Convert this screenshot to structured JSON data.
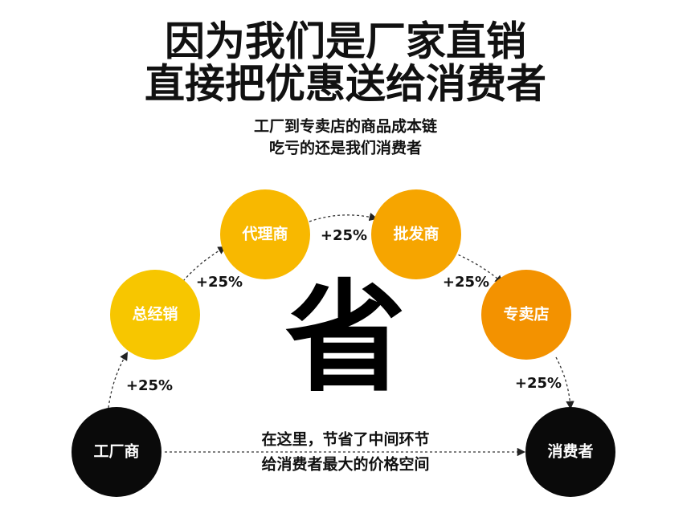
{
  "header": {
    "title_lines": [
      "因为我们是厂家直销",
      "直接把优惠送给消费者"
    ],
    "subtitle_lines": [
      "工厂到专卖店的商品成本链",
      "吃亏的还是我们消费者"
    ]
  },
  "nodes": [
    {
      "label": "工厂商"
    },
    {
      "label": "总经销"
    },
    {
      "label": "代理商"
    },
    {
      "label": "批发商"
    },
    {
      "label": "专卖店"
    },
    {
      "label": "消费者"
    }
  ],
  "edges": [
    {
      "label": "+25%"
    },
    {
      "label": "+25%"
    },
    {
      "label": "+25%"
    },
    {
      "label": "+25%"
    },
    {
      "label": "+25%"
    }
  ],
  "center": {
    "char": "省",
    "note_lines": [
      "在这里，节省了中间环节",
      "给消费者最大的价格空间"
    ]
  }
}
